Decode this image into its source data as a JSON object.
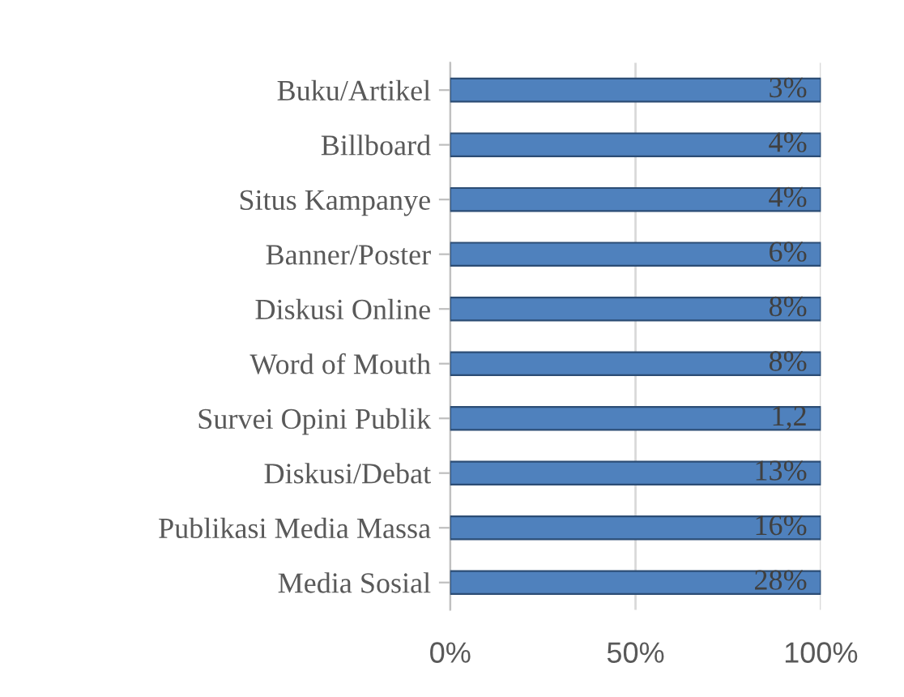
{
  "chart_data": {
    "type": "bar",
    "orientation": "horizontal",
    "categories": [
      "Buku/Artikel",
      "Billboard",
      "Situs Kampanye",
      "Banner/Poster",
      "Diskusi Online",
      "Word of Mouth",
      "Survei Opini Publik",
      "Diskusi/Debat",
      "Publikasi Media Massa",
      "Media Sosial"
    ],
    "values": [
      100,
      100,
      100,
      100,
      100,
      100,
      100,
      100,
      100,
      100
    ],
    "annotations": [
      "3%",
      "4%",
      "4%",
      "6%",
      "8%",
      "8%",
      "1,2",
      "13%",
      "16%",
      "28%"
    ],
    "color": "#4f81bd",
    "xlim": [
      0,
      100
    ],
    "xticks": [
      {
        "value": 0,
        "label": "0%"
      },
      {
        "value": 50,
        "label": "50%"
      },
      {
        "value": 100,
        "label": "100%"
      }
    ],
    "grid": "x",
    "legend": false
  }
}
